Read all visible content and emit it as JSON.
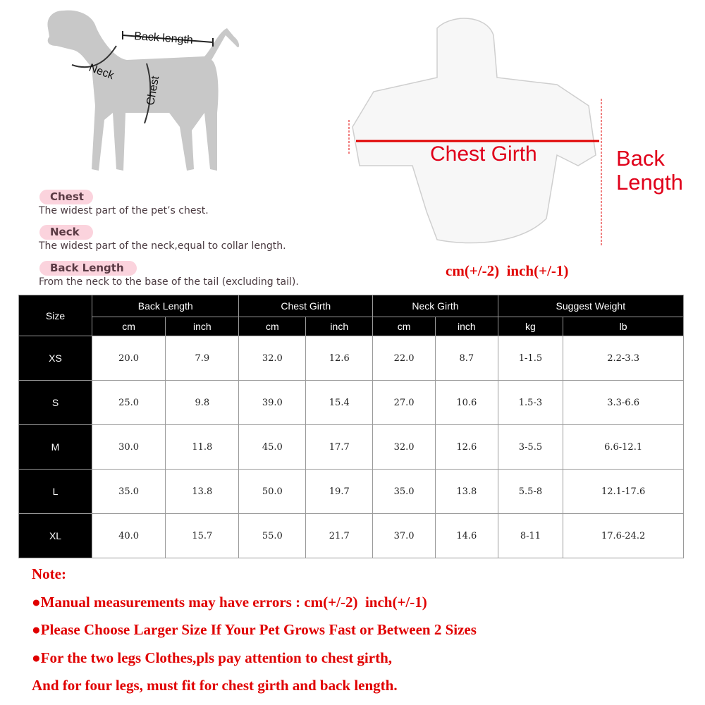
{
  "dog_diagram": {
    "back_length": "Back length",
    "neck": "Neck",
    "chest": "Chest"
  },
  "definitions": [
    {
      "term": "Chest",
      "text": "The widest part of the pet’s chest."
    },
    {
      "term": "Neck",
      "text": "The widest part of the neck,equal to collar length."
    },
    {
      "term": "Back Length",
      "text": "From the neck to the base of the tail (excluding tail)."
    }
  ],
  "garment_diagram": {
    "chest_girth": "Chest Girth",
    "back_length_line1": "Back",
    "back_length_line2": "Length",
    "tolerance": "cm(+/-2)  inch(+/-1)"
  },
  "table": {
    "size_header": "Size",
    "groups": [
      "Back Length",
      "Chest Girth",
      "Neck Girth",
      "Suggest Weight"
    ],
    "units": [
      "cm",
      "inch",
      "cm",
      "inch",
      "cm",
      "inch",
      "kg",
      "lb"
    ],
    "rows": [
      {
        "size": "XS",
        "values": [
          "20.0",
          "7.9",
          "32.0",
          "12.6",
          "22.0",
          "8.7",
          "1-1.5",
          "2.2-3.3"
        ]
      },
      {
        "size": "S",
        "values": [
          "25.0",
          "9.8",
          "39.0",
          "15.4",
          "27.0",
          "10.6",
          "1.5-3",
          "3.3-6.6"
        ]
      },
      {
        "size": "M",
        "values": [
          "30.0",
          "11.8",
          "45.0",
          "17.7",
          "32.0",
          "12.6",
          "3-5.5",
          "6.6-12.1"
        ]
      },
      {
        "size": "L",
        "values": [
          "35.0",
          "13.8",
          "50.0",
          "19.7",
          "35.0",
          "13.8",
          "5.5-8",
          "12.1-17.6"
        ]
      },
      {
        "size": "XL",
        "values": [
          "40.0",
          "15.7",
          "55.0",
          "21.7",
          "37.0",
          "14.6",
          "8-11",
          "17.6-24.2"
        ]
      }
    ]
  },
  "notes": {
    "title": "Note:",
    "lines": [
      "●Manual measurements may have errors : cm(+/-2)  inch(+/-1)",
      "●Please Choose Larger Size If Your Pet Grows Fast or Between 2 Sizes",
      "●For the two legs Clothes,pls pay attention to chest girth,",
      "And for four legs, must fit for chest girth and back length."
    ]
  },
  "colors": {
    "accent_red": "#e00000",
    "pill_pink": "#fbd3dd",
    "header_black": "#000000"
  }
}
